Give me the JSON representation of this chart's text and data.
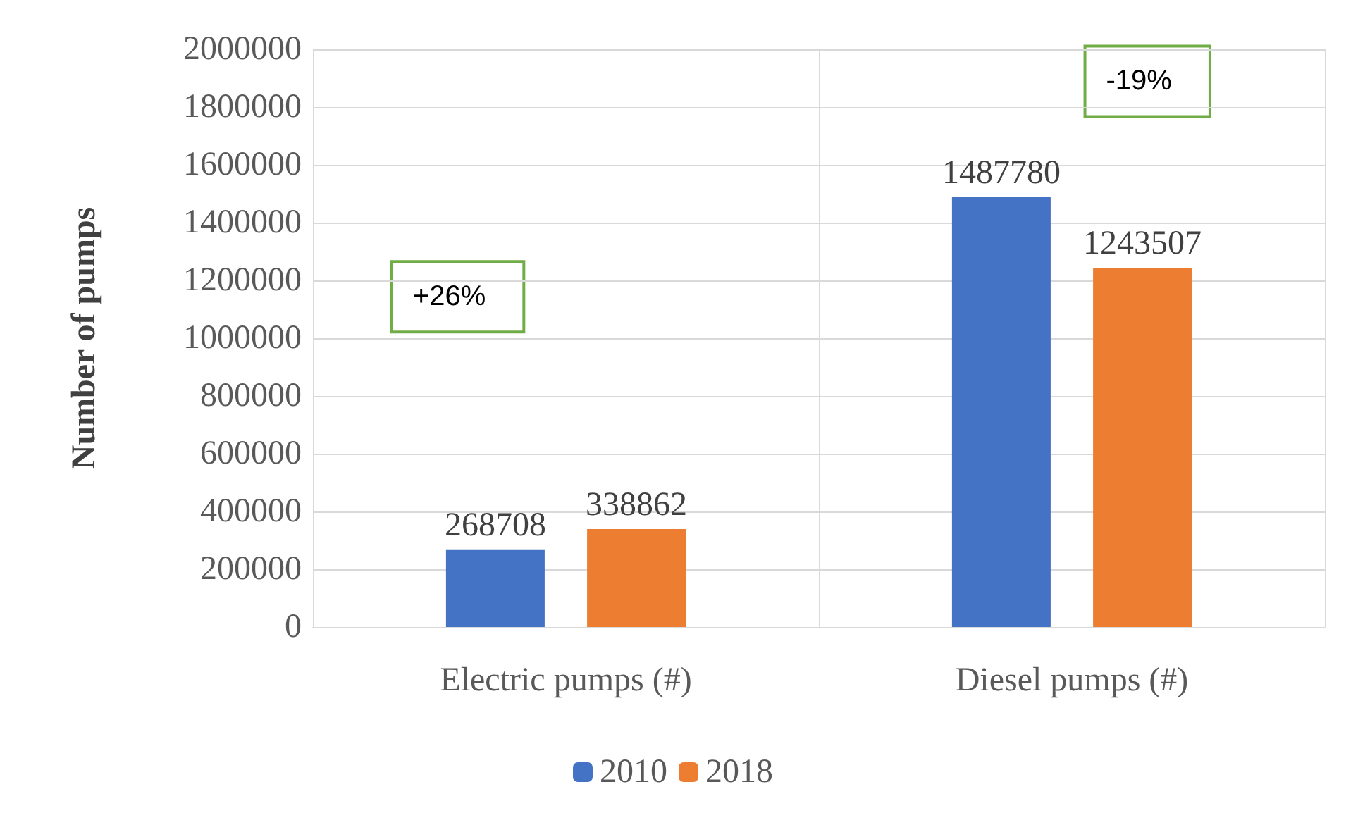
{
  "chart_data": {
    "type": "bar",
    "ylabel": "Number of pumps",
    "categories": [
      "Electric pumps (#)",
      "Diesel pumps (#)"
    ],
    "series": [
      {
        "name": "2010",
        "color": "#4472c4",
        "values": [
          268708,
          1487780
        ]
      },
      {
        "name": "2018",
        "color": "#ed7d31",
        "values": [
          338862,
          1243507
        ]
      }
    ],
    "ylim": [
      0,
      2000000
    ],
    "yticks": [
      0,
      200000,
      400000,
      600000,
      800000,
      1000000,
      1200000,
      1400000,
      1600000,
      1800000,
      2000000
    ],
    "grid": true,
    "legend": "bottom",
    "data_labels": true,
    "annotations": [
      "+26%",
      "-19%"
    ]
  }
}
